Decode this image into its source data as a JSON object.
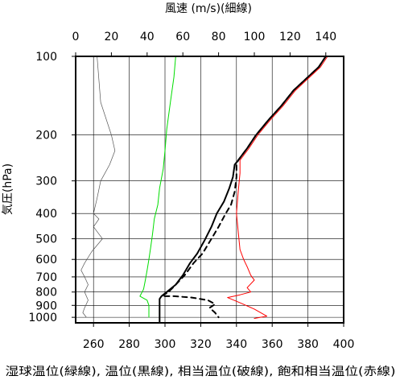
{
  "chart_data": {
    "type": "line",
    "title": "",
    "top_axis_label": "風速 (m/s)(細線)",
    "bottom_axis_label": "湿球温位(緑線), 温位(黒線), 相当温位(破線), 飽和相当温位(赤線)",
    "ylabel": "気圧(hPa)",
    "xlim_bottom": [
      250,
      400
    ],
    "xticks_bottom": [
      260,
      280,
      300,
      320,
      340,
      360,
      380,
      400
    ],
    "xlim_top": [
      0,
      150
    ],
    "xticks_top": [
      0,
      20,
      40,
      60,
      80,
      100,
      120,
      140
    ],
    "ylim": [
      1050,
      100
    ],
    "y_scale": "log",
    "yticks": [
      100,
      200,
      300,
      400,
      500,
      600,
      700,
      800,
      900,
      1000
    ],
    "grid": true,
    "series": [
      {
        "name": "湿球温位(緑線)",
        "axis": "bottom",
        "color": "#00dd00",
        "line_style": "solid",
        "points": [
          [
            306,
            100
          ],
          [
            305,
            120
          ],
          [
            303,
            150
          ],
          [
            301,
            190
          ],
          [
            300,
            230
          ],
          [
            299,
            270
          ],
          [
            297,
            320
          ],
          [
            296,
            370
          ],
          [
            294,
            420
          ],
          [
            293,
            480
          ],
          [
            292,
            540
          ],
          [
            291,
            600
          ],
          [
            290,
            660
          ],
          [
            289,
            720
          ],
          [
            288,
            780
          ],
          [
            286,
            830
          ],
          [
            290,
            860
          ],
          [
            291,
            900
          ],
          [
            291,
            950
          ],
          [
            291,
            1000
          ]
        ]
      },
      {
        "name": "温位(黒線)",
        "axis": "bottom",
        "color": "#000000",
        "line_style": "solid",
        "points": [
          [
            390,
            100
          ],
          [
            386,
            110
          ],
          [
            380,
            120
          ],
          [
            372,
            135
          ],
          [
            365,
            155
          ],
          [
            358,
            175
          ],
          [
            351,
            200
          ],
          [
            346,
            225
          ],
          [
            341,
            250
          ],
          [
            339,
            260
          ],
          [
            338,
            290
          ],
          [
            336,
            320
          ],
          [
            333,
            360
          ],
          [
            329,
            400
          ],
          [
            326,
            450
          ],
          [
            322,
            510
          ],
          [
            318,
            570
          ],
          [
            314,
            620
          ],
          [
            310,
            690
          ],
          [
            306,
            750
          ],
          [
            301,
            800
          ],
          [
            298,
            830
          ],
          [
            297,
            850
          ],
          [
            297,
            900
          ],
          [
            297,
            1000
          ],
          [
            297,
            1050
          ]
        ]
      },
      {
        "name": "相当温位(破線)",
        "axis": "bottom",
        "color": "#000000",
        "line_style": "dashed",
        "points": [
          [
            390,
            100
          ],
          [
            386,
            110
          ],
          [
            380,
            120
          ],
          [
            372,
            135
          ],
          [
            365,
            155
          ],
          [
            358,
            175
          ],
          [
            351,
            200
          ],
          [
            346,
            225
          ],
          [
            341,
            250
          ],
          [
            340,
            260
          ],
          [
            340,
            290
          ],
          [
            339,
            330
          ],
          [
            337,
            370
          ],
          [
            334,
            400
          ],
          [
            330,
            450
          ],
          [
            326,
            500
          ],
          [
            321,
            570
          ],
          [
            316,
            620
          ],
          [
            311,
            690
          ],
          [
            306,
            750
          ],
          [
            302,
            800
          ],
          [
            298,
            830
          ],
          [
            305,
            830
          ],
          [
            315,
            840
          ],
          [
            324,
            860
          ],
          [
            328,
            890
          ],
          [
            325,
            920
          ],
          [
            328,
            960
          ],
          [
            330,
            1000
          ]
        ]
      },
      {
        "name": "飽和相当温位(赤線)",
        "axis": "bottom",
        "color": "#ff0000",
        "line_style": "solid",
        "points": [
          [
            391,
            100
          ],
          [
            387,
            110
          ],
          [
            381,
            120
          ],
          [
            373,
            135
          ],
          [
            366,
            155
          ],
          [
            359,
            175
          ],
          [
            352,
            200
          ],
          [
            347,
            225
          ],
          [
            342,
            250
          ],
          [
            342,
            280
          ],
          [
            341,
            330
          ],
          [
            340,
            400
          ],
          [
            341,
            470
          ],
          [
            342,
            550
          ],
          [
            344,
            600
          ],
          [
            346,
            640
          ],
          [
            348,
            690
          ],
          [
            350,
            720
          ],
          [
            346,
            770
          ],
          [
            348,
            800
          ],
          [
            342,
            820
          ],
          [
            335,
            840
          ],
          [
            342,
            880
          ],
          [
            350,
            930
          ],
          [
            357,
            990
          ],
          [
            350,
            1010
          ]
        ]
      },
      {
        "name": "風速(細線)",
        "axis": "top",
        "color": "#555555",
        "line_style": "thin",
        "points": [
          [
            12,
            100
          ],
          [
            14,
            150
          ],
          [
            20,
            200
          ],
          [
            22,
            230
          ],
          [
            19,
            260
          ],
          [
            14,
            300
          ],
          [
            12,
            350
          ],
          [
            10,
            400
          ],
          [
            13,
            420
          ],
          [
            10,
            450
          ],
          [
            15,
            500
          ],
          [
            9,
            560
          ],
          [
            5,
            620
          ],
          [
            3,
            660
          ],
          [
            5,
            700
          ],
          [
            7,
            750
          ],
          [
            5,
            800
          ],
          [
            7,
            860
          ],
          [
            5,
            920
          ],
          [
            4,
            960
          ],
          [
            6,
            1000
          ]
        ]
      }
    ]
  }
}
